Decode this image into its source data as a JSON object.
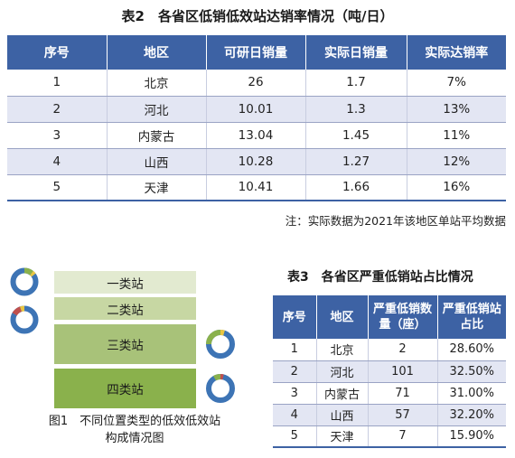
{
  "table2": {
    "title": "表2　各省区低销低效站达销率情况（吨/日）",
    "headers": [
      "序号",
      "地区",
      "可研日销量",
      "实际日销量",
      "实际达销率"
    ],
    "rows": [
      [
        "1",
        "北京",
        "26",
        "1.7",
        "7%"
      ],
      [
        "2",
        "河北",
        "10.01",
        "1.3",
        "13%"
      ],
      [
        "3",
        "内蒙古",
        "13.04",
        "1.45",
        "11%"
      ],
      [
        "4",
        "山西",
        "10.28",
        "1.27",
        "12%"
      ],
      [
        "5",
        "天津",
        "10.41",
        "1.66",
        "16%"
      ]
    ],
    "note": "注：实际数据为2021年该地区单站平均数据"
  },
  "table3": {
    "title": "表3　各省区严重低销站占比情况",
    "headers": [
      "序号",
      "地区",
      "严重低销数量（座）",
      "严重低销站占比"
    ],
    "rows": [
      [
        "1",
        "北京",
        "2",
        "28.60%"
      ],
      [
        "2",
        "河北",
        "101",
        "32.50%"
      ],
      [
        "3",
        "内蒙古",
        "71",
        "31.00%"
      ],
      [
        "4",
        "山西",
        "57",
        "32.20%"
      ],
      [
        "5",
        "天津",
        "7",
        "15.90%"
      ]
    ]
  },
  "figure1": {
    "bars": [
      "一类站",
      "二类站",
      "三类站",
      "四类站"
    ],
    "caption_line1": "图1　不同位置类型的低效低效站",
    "caption_line2": "构成情况图",
    "colors": {
      "bar1": "#e2ead0",
      "bar2": "#c7d7a3",
      "bar3": "#a8c279",
      "bar4": "#8ab14c",
      "donut_ring": "#3d74b5",
      "donut_green": "#8ab14c",
      "donut_red": "#c0504d",
      "donut_yellow": "#e9c642"
    },
    "donut_icons": [
      "donut-icon",
      "donut-icon",
      "donut-icon",
      "donut-icon"
    ]
  }
}
